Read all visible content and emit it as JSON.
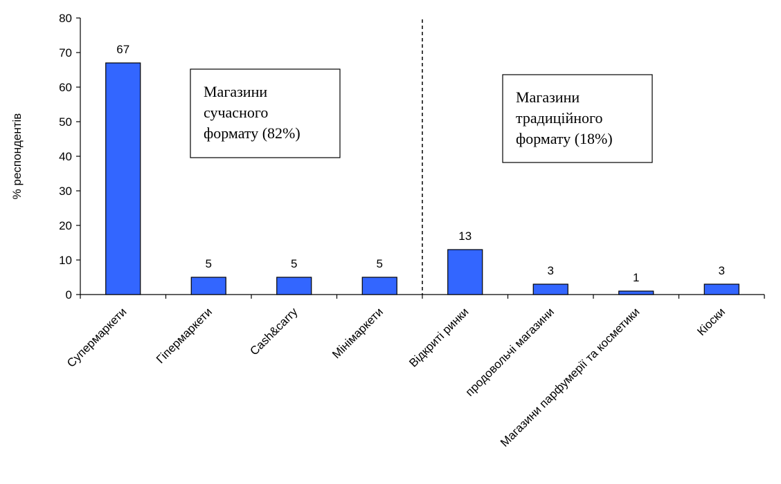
{
  "chart_data": {
    "type": "bar",
    "categories": [
      "Супермаркети",
      "Гіпермаркети",
      "Cash&carry",
      "Мінімаркети",
      "Відкриті ринки",
      "продовольчі магазини",
      "Магазини парфумерії та косметики",
      "Кіоски"
    ],
    "values": [
      67,
      5,
      5,
      5,
      13,
      3,
      1,
      3
    ],
    "data_labels": [
      "67",
      "5",
      "5",
      "5",
      "13",
      "3",
      "1",
      "3"
    ],
    "ylabel": "% респондентів",
    "xlabel": "",
    "ylim": [
      0,
      80
    ],
    "yticks": [
      "0",
      "10",
      "20",
      "30",
      "40",
      "50",
      "60",
      "70",
      "80"
    ],
    "grid": false,
    "legend": "none",
    "bar_color": "#3366ff",
    "annotations": [
      {
        "lines": [
          "Магазини",
          "сучасного",
          "формату (82%)"
        ]
      },
      {
        "lines": [
          "Магазини",
          "традиційного",
          "формату (18%)"
        ]
      }
    ],
    "divider": "dashed line between Мінімаркети and Відкриті ринки"
  }
}
